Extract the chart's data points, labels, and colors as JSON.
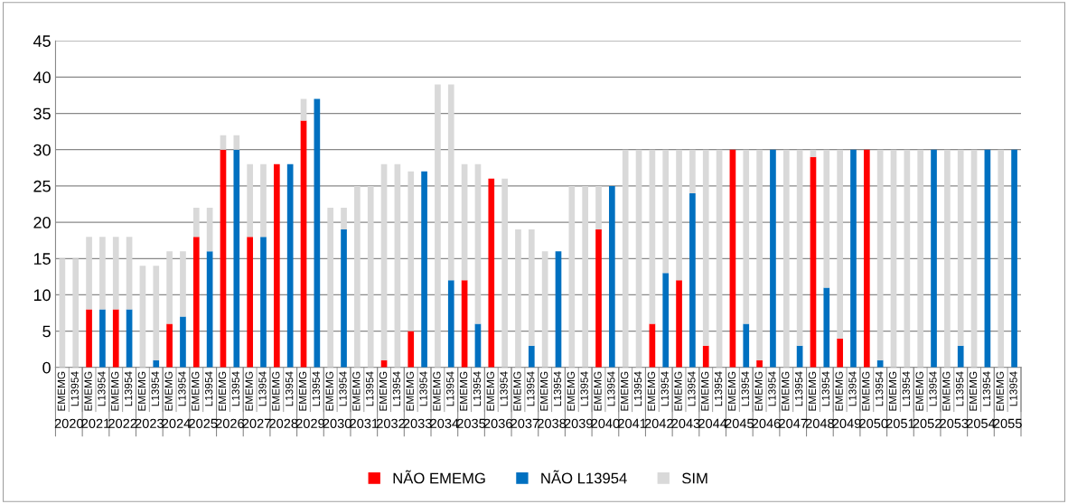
{
  "chart_data": {
    "type": "bar",
    "stacked": true,
    "legend": "bottom",
    "grid": "y",
    "categories": [
      "EMEMG",
      "L13954",
      "EMEMG",
      "L13954",
      "EMEMG",
      "L13954",
      "EMEMG",
      "L13954",
      "EMEMG",
      "L13954",
      "EMEMG",
      "L13954",
      "EMEMG",
      "L13954",
      "EMEMG",
      "L13954",
      "EMEMG",
      "L13954",
      "EMEMG",
      "L13954",
      "EMEMG",
      "L13954",
      "EMEMG",
      "L13954",
      "EMEMG",
      "L13954",
      "EMEMG",
      "L13954",
      "EMEMG",
      "L13954",
      "EMEMG",
      "L13954",
      "EMEMG",
      "L13954",
      "EMEMG",
      "L13954",
      "EMEMG",
      "L13954",
      "EMEMG",
      "L13954",
      "EMEMG",
      "L13954",
      "EMEMG",
      "L13954",
      "EMEMG",
      "L13954",
      "EMEMG",
      "L13954",
      "EMEMG",
      "L13954",
      "EMEMG",
      "L13954",
      "EMEMG",
      "L13954",
      "EMEMG",
      "L13954",
      "EMEMG",
      "L13954",
      "EMEMG",
      "L13954",
      "EMEMG",
      "L13954",
      "EMEMG",
      "L13954",
      "EMEMG",
      "L13954",
      "EMEMG",
      "L13954",
      "EMEMG",
      "L13954",
      "EMEMG",
      "L13954"
    ],
    "annotations": [
      "2020",
      "2021",
      "2022",
      "2023",
      "2024",
      "2025",
      "2026",
      "2027",
      "2028",
      "2029",
      "2030",
      "2031",
      "2032",
      "2033",
      "2034",
      "2035",
      "2036",
      "2037",
      "2038",
      "2039",
      "2040",
      "2041",
      "2042",
      "2043",
      "2044",
      "2045",
      "2046",
      "2047",
      "2048",
      "2049",
      "2050",
      "2051",
      "2052",
      "2053",
      "2054",
      "2055"
    ],
    "ylim": [
      0,
      45
    ],
    "yticks": [
      0,
      5,
      10,
      15,
      20,
      25,
      30,
      35,
      40,
      45
    ],
    "series": [
      {
        "name": "NÃO EMEMG",
        "color": "#ff0000",
        "values": [
          0,
          null,
          8,
          null,
          8,
          null,
          0,
          null,
          6,
          null,
          18,
          null,
          30,
          null,
          18,
          null,
          28,
          null,
          34,
          null,
          0,
          null,
          0,
          null,
          1,
          null,
          5,
          null,
          0,
          null,
          12,
          null,
          26,
          null,
          0,
          null,
          0,
          null,
          0,
          null,
          19,
          null,
          0,
          null,
          6,
          null,
          12,
          null,
          3,
          null,
          30,
          null,
          1,
          null,
          0,
          null,
          29,
          null,
          4,
          null,
          30,
          null,
          0,
          null,
          0,
          null,
          0,
          null,
          0,
          null,
          0,
          null
        ]
      },
      {
        "name": "NÃO L13954",
        "color": "#0070c0",
        "values": [
          null,
          0,
          null,
          8,
          null,
          8,
          null,
          1,
          null,
          7,
          null,
          16,
          null,
          30,
          null,
          18,
          null,
          28,
          null,
          37,
          null,
          19,
          null,
          0,
          null,
          0,
          null,
          27,
          null,
          12,
          null,
          6,
          null,
          0,
          null,
          3,
          null,
          16,
          null,
          0,
          null,
          25,
          null,
          0,
          null,
          13,
          null,
          24,
          null,
          0,
          null,
          6,
          null,
          30,
          null,
          3,
          null,
          11,
          null,
          30,
          null,
          1,
          null,
          0,
          null,
          30,
          null,
          3,
          null,
          30,
          null,
          30
        ]
      },
      {
        "name": "SIM",
        "color": "#d9d9d9",
        "values": [
          15,
          15,
          10,
          10,
          10,
          10,
          14,
          13,
          10,
          9,
          4,
          6,
          2,
          2,
          10,
          10,
          0,
          0,
          3,
          0,
          22,
          3,
          25,
          25,
          27,
          28,
          22,
          0,
          39,
          27,
          16,
          22,
          0,
          26,
          19,
          16,
          16,
          0,
          25,
          25,
          6,
          0,
          30,
          30,
          24,
          17,
          18,
          6,
          27,
          30,
          0,
          24,
          29,
          0,
          30,
          27,
          1,
          19,
          26,
          0,
          0,
          29,
          30,
          30,
          30,
          0,
          30,
          27,
          30,
          0,
          30,
          0
        ]
      }
    ]
  }
}
